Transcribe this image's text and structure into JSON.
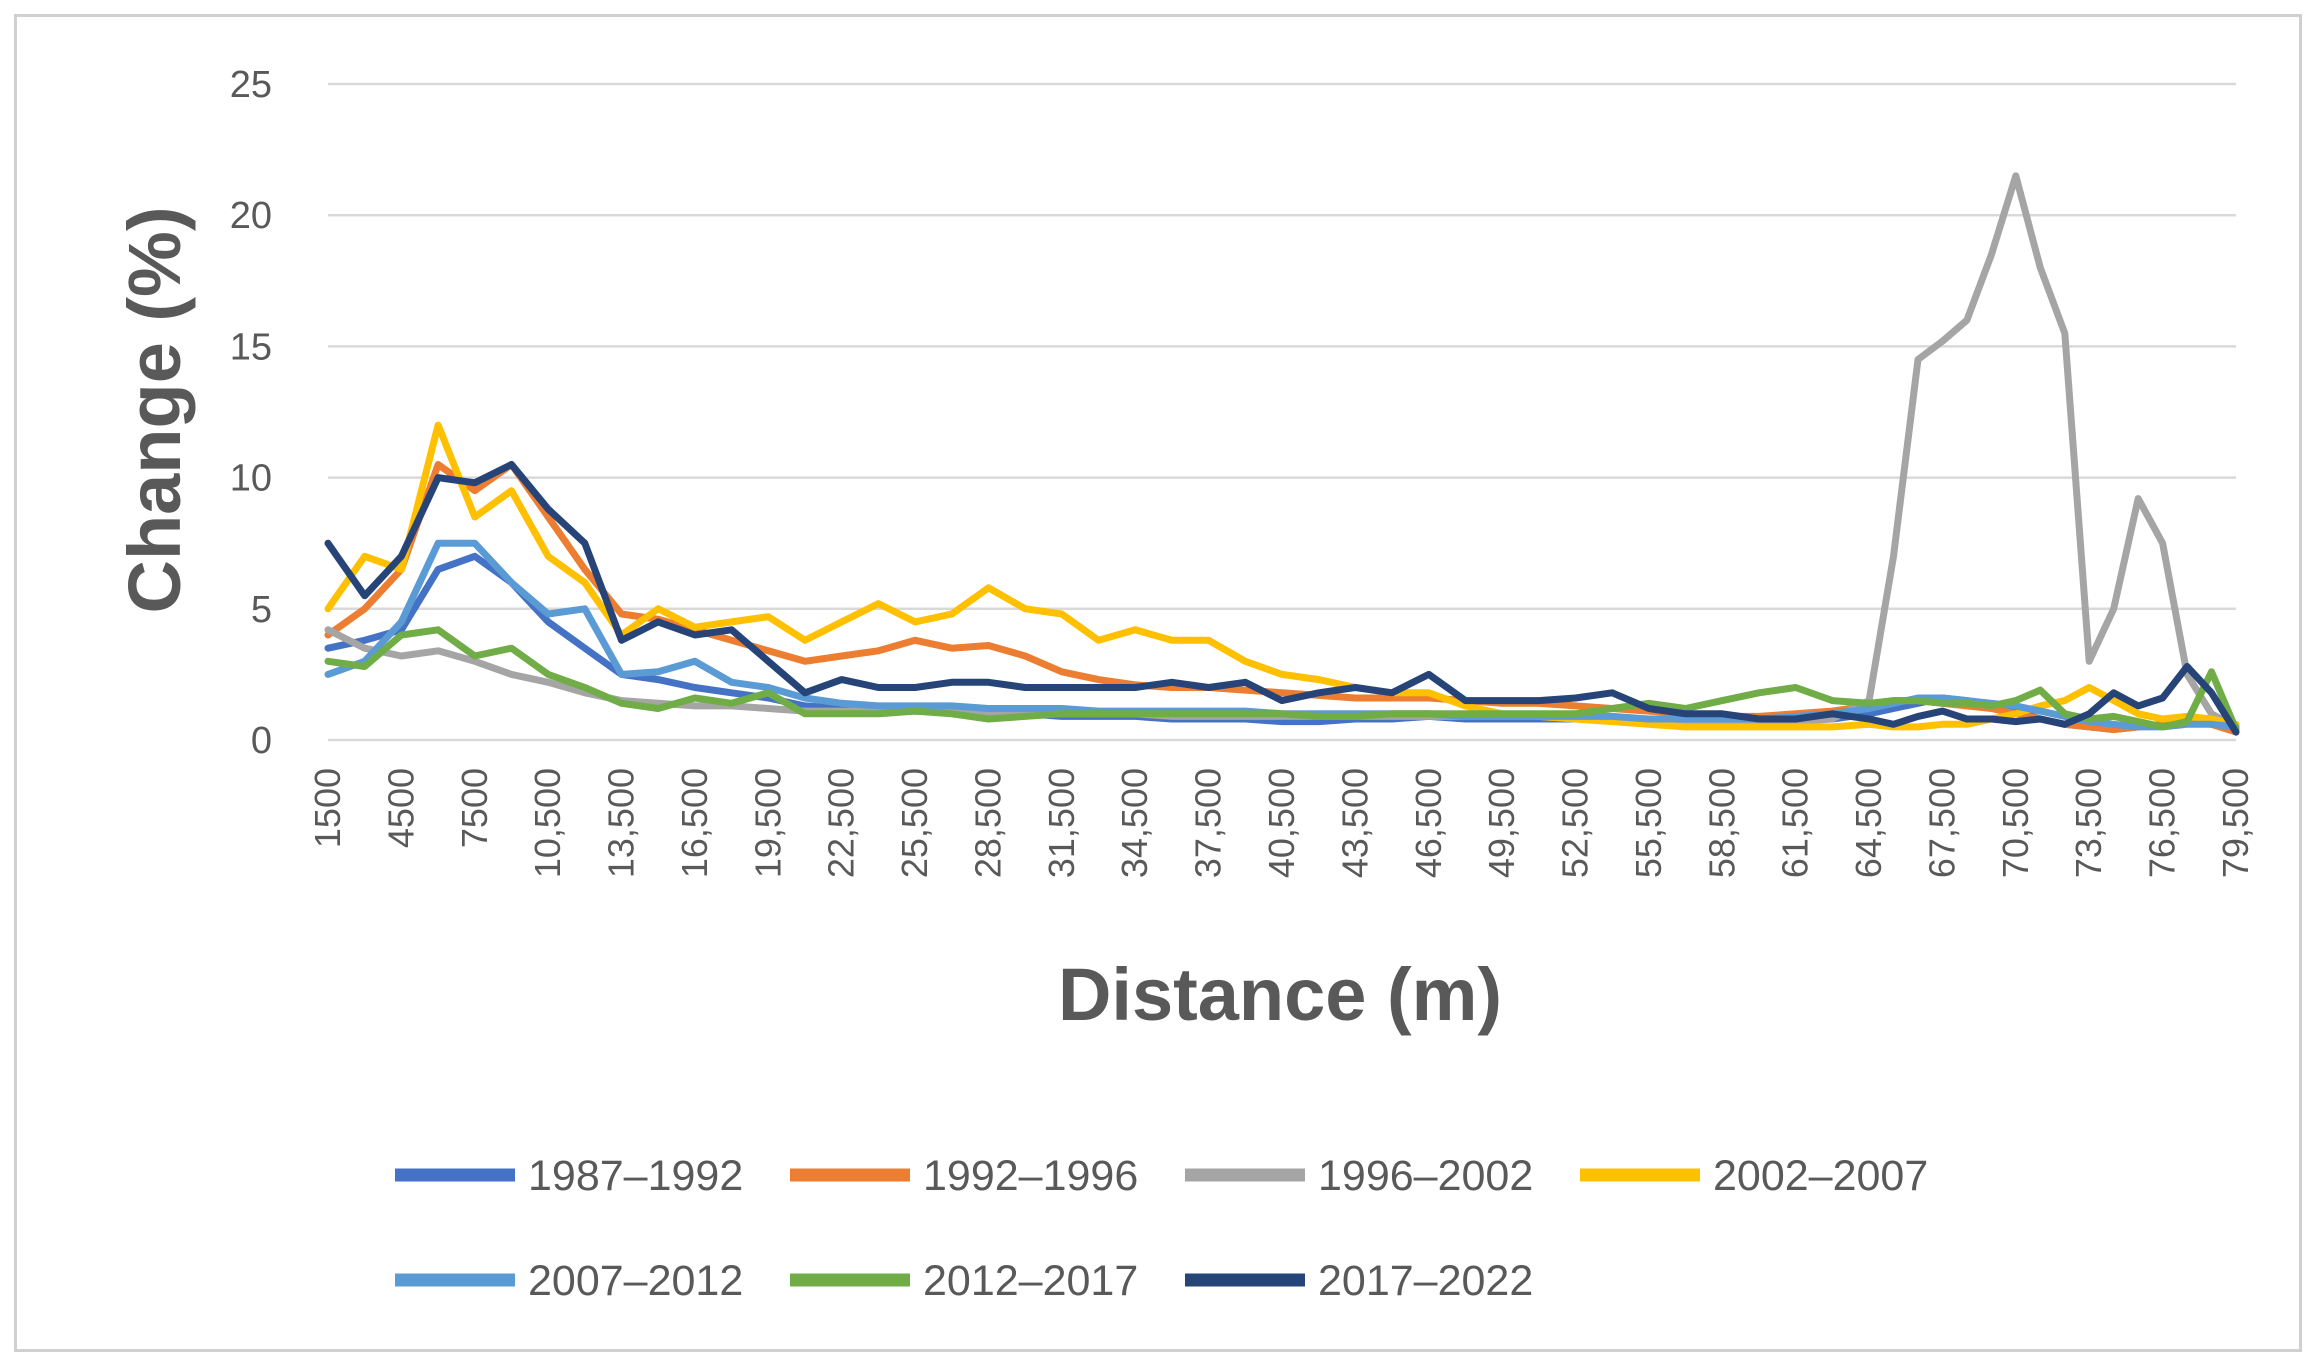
{
  "chart_data": {
    "type": "line",
    "title": "",
    "xlabel": "Distance (m)",
    "ylabel": "Change (%)",
    "ylim": [
      0,
      25
    ],
    "yticks": [
      0,
      5,
      10,
      15,
      20,
      25
    ],
    "grid": "horizontal",
    "legend_position": "bottom",
    "x_tick_labels": [
      "1500",
      "4500",
      "7500",
      "10,500",
      "13,500",
      "16,500",
      "19,500",
      "22,500",
      "25,500",
      "28,500",
      "31,500",
      "34,500",
      "37,500",
      "40,500",
      "43,500",
      "46,500",
      "49,500",
      "52,500",
      "55,500",
      "58,500",
      "61,500",
      "64,500",
      "67,500",
      "70,500",
      "73,500",
      "76,500",
      "79,500"
    ],
    "x_tick_values": [
      1500,
      4500,
      7500,
      10500,
      13500,
      16500,
      19500,
      22500,
      25500,
      28500,
      31500,
      34500,
      37500,
      40500,
      43500,
      46500,
      49500,
      52500,
      55500,
      58500,
      61500,
      64500,
      67500,
      70500,
      73500,
      76500,
      79500
    ],
    "xlim": [
      1500,
      79500
    ],
    "x": [
      1500,
      3000,
      4500,
      6000,
      7500,
      9000,
      10500,
      12000,
      13500,
      15000,
      16500,
      18000,
      19500,
      21000,
      22500,
      24000,
      25500,
      27000,
      28500,
      30000,
      31500,
      33000,
      34500,
      36000,
      37500,
      39000,
      40500,
      42000,
      43500,
      45000,
      46500,
      48000,
      49500,
      51000,
      52500,
      54000,
      55500,
      57000,
      58500,
      60000,
      61500,
      63000,
      64500,
      65500,
      66500,
      67500,
      68500,
      69500,
      70500,
      71500,
      72500,
      73500,
      74500,
      75500,
      76500,
      77500,
      78500,
      79500
    ],
    "series": [
      {
        "name": "1987–1992",
        "color": "#4472c4",
        "values": [
          3.5,
          3.8,
          4.2,
          6.5,
          7.0,
          6.0,
          4.5,
          3.5,
          2.5,
          2.3,
          2.0,
          1.8,
          1.6,
          1.3,
          1.2,
          1.2,
          1.1,
          1.1,
          1.0,
          1.0,
          0.9,
          0.9,
          0.9,
          0.8,
          0.8,
          0.8,
          0.7,
          0.7,
          0.8,
          0.8,
          0.9,
          0.8,
          0.8,
          0.8,
          0.8,
          0.8,
          0.7,
          0.7,
          0.7,
          0.7,
          0.8,
          0.8,
          1.0,
          1.2,
          1.4,
          1.6,
          1.5,
          1.3,
          1.1,
          0.8,
          0.6,
          0.5,
          0.4,
          0.5,
          0.6,
          0.7,
          0.6,
          0.4
        ]
      },
      {
        "name": "1992–1996",
        "color": "#ed7d31",
        "values": [
          4.0,
          5.0,
          6.5,
          10.5,
          9.5,
          10.5,
          8.5,
          6.5,
          4.8,
          4.6,
          4.2,
          3.8,
          3.4,
          3.0,
          3.2,
          3.4,
          3.8,
          3.5,
          3.6,
          3.2,
          2.6,
          2.3,
          2.1,
          2.0,
          2.0,
          1.9,
          1.8,
          1.7,
          1.6,
          1.6,
          1.6,
          1.5,
          1.4,
          1.4,
          1.3,
          1.2,
          1.1,
          1.0,
          0.9,
          0.9,
          1.0,
          1.1,
          1.3,
          1.5,
          1.5,
          1.4,
          1.3,
          1.2,
          1.0,
          0.8,
          0.6,
          0.5,
          0.4,
          0.5,
          0.6,
          0.8,
          0.6,
          0.3
        ]
      },
      {
        "name": "1996–2002",
        "color": "#a5a5a5",
        "values": [
          4.2,
          3.5,
          3.2,
          3.4,
          3.0,
          2.5,
          2.2,
          1.8,
          1.5,
          1.4,
          1.3,
          1.3,
          1.2,
          1.1,
          1.1,
          1.1,
          1.1,
          1.1,
          1.0,
          1.0,
          1.0,
          1.0,
          1.0,
          0.9,
          0.9,
          0.9,
          0.9,
          0.9,
          0.9,
          0.9,
          0.9,
          0.9,
          0.9,
          0.9,
          0.8,
          0.8,
          0.8,
          0.7,
          0.7,
          0.7,
          0.7,
          0.8,
          1.5,
          7.0,
          14.5,
          15.2,
          16.0,
          18.5,
          21.5,
          18.0,
          15.5,
          3.0,
          5.0,
          9.2,
          7.5,
          2.5,
          1.0,
          0.5
        ]
      },
      {
        "name": "2002–2007",
        "color": "#ffc000",
        "values": [
          5.0,
          7.0,
          6.5,
          12.0,
          8.5,
          9.5,
          7.0,
          6.0,
          4.0,
          5.0,
          4.3,
          4.5,
          4.7,
          3.8,
          4.5,
          5.2,
          4.5,
          4.8,
          5.8,
          5.0,
          4.8,
          3.8,
          4.2,
          3.8,
          3.8,
          3.0,
          2.5,
          2.3,
          2.0,
          1.8,
          1.8,
          1.3,
          1.0,
          0.9,
          0.8,
          0.7,
          0.6,
          0.5,
          0.5,
          0.5,
          0.5,
          0.5,
          0.6,
          0.5,
          0.5,
          0.6,
          0.6,
          0.8,
          1.0,
          1.3,
          1.5,
          2.0,
          1.5,
          1.0,
          0.8,
          0.9,
          0.8,
          0.6
        ]
      },
      {
        "name": "2007–2012",
        "color": "#5b9bd5",
        "values": [
          2.5,
          3.0,
          4.5,
          7.5,
          7.5,
          6.0,
          4.8,
          5.0,
          2.5,
          2.6,
          3.0,
          2.2,
          2.0,
          1.6,
          1.4,
          1.3,
          1.3,
          1.3,
          1.2,
          1.2,
          1.2,
          1.1,
          1.1,
          1.1,
          1.1,
          1.1,
          1.0,
          1.0,
          1.0,
          1.0,
          1.0,
          0.9,
          0.9,
          0.9,
          0.9,
          0.9,
          0.8,
          0.8,
          0.8,
          0.8,
          0.9,
          1.0,
          1.2,
          1.4,
          1.6,
          1.6,
          1.5,
          1.4,
          1.3,
          1.1,
          0.9,
          0.7,
          0.6,
          0.5,
          0.5,
          0.6,
          0.6,
          0.5
        ]
      },
      {
        "name": "2012–2017",
        "color": "#70ad47",
        "values": [
          3.0,
          2.8,
          4.0,
          4.2,
          3.2,
          3.5,
          2.5,
          2.0,
          1.4,
          1.2,
          1.6,
          1.4,
          1.8,
          1.0,
          1.0,
          1.0,
          1.1,
          1.0,
          0.8,
          0.9,
          1.0,
          1.0,
          1.0,
          1.0,
          1.0,
          1.0,
          1.0,
          0.9,
          0.9,
          1.0,
          1.0,
          1.0,
          1.0,
          1.0,
          1.0,
          1.2,
          1.4,
          1.2,
          1.5,
          1.8,
          2.0,
          1.5,
          1.4,
          1.5,
          1.5,
          1.4,
          1.4,
          1.3,
          1.5,
          1.9,
          1.0,
          0.8,
          0.9,
          0.7,
          0.5,
          0.7,
          2.6,
          0.4
        ]
      },
      {
        "name": "2017–2022",
        "color": "#264478",
        "values": [
          7.5,
          5.5,
          7.0,
          10.0,
          9.8,
          10.5,
          8.8,
          7.5,
          3.8,
          4.5,
          4.0,
          4.2,
          3.0,
          1.8,
          2.3,
          2.0,
          2.0,
          2.2,
          2.2,
          2.0,
          2.0,
          2.0,
          2.0,
          2.2,
          2.0,
          2.2,
          1.5,
          1.8,
          2.0,
          1.8,
          2.5,
          1.5,
          1.5,
          1.5,
          1.6,
          1.8,
          1.2,
          1.0,
          1.0,
          0.8,
          0.8,
          1.0,
          0.8,
          0.6,
          0.9,
          1.1,
          0.8,
          0.8,
          0.7,
          0.8,
          0.6,
          1.0,
          1.8,
          1.3,
          1.6,
          2.8,
          1.8,
          0.3
        ]
      }
    ]
  }
}
